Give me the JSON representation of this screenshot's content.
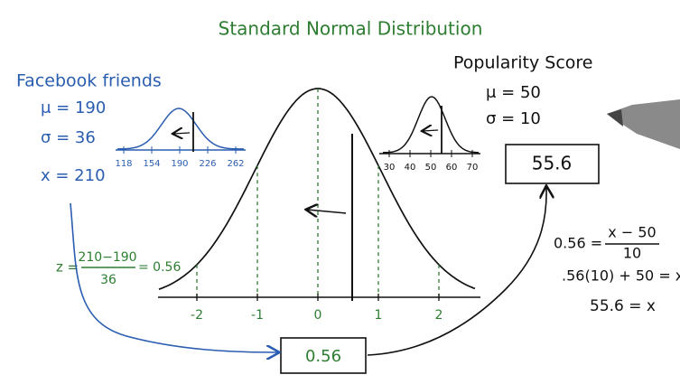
{
  "title": "Standard Normal Distribution",
  "facebook": {
    "label": "Facebook friends",
    "mean": "μ = 190",
    "sd": "σ = 36",
    "x": "x = 210",
    "axis_labels": [
      "118",
      "154",
      "190",
      "226",
      "262"
    ]
  },
  "popularity": {
    "label": "Popularity Score",
    "mean": "μ = 50",
    "sd": "σ = 10",
    "axis_labels": [
      "30",
      "40",
      "50",
      "60",
      "70"
    ]
  },
  "standard": {
    "axis_labels": [
      "-2",
      "-1",
      "0",
      "1",
      "2"
    ]
  },
  "z_formula": {
    "lhs": "z =",
    "numerator": "210−190",
    "denominator": "36",
    "result": "= 0.56"
  },
  "z_box": "0.56",
  "score_box": "55.6",
  "solution": {
    "line1_lhs": "0.56 =",
    "line1_numerator": "x − 50",
    "line1_denominator": "10",
    "line2": ".56(10) + 50 = x",
    "line3": "55.6 = x"
  }
}
